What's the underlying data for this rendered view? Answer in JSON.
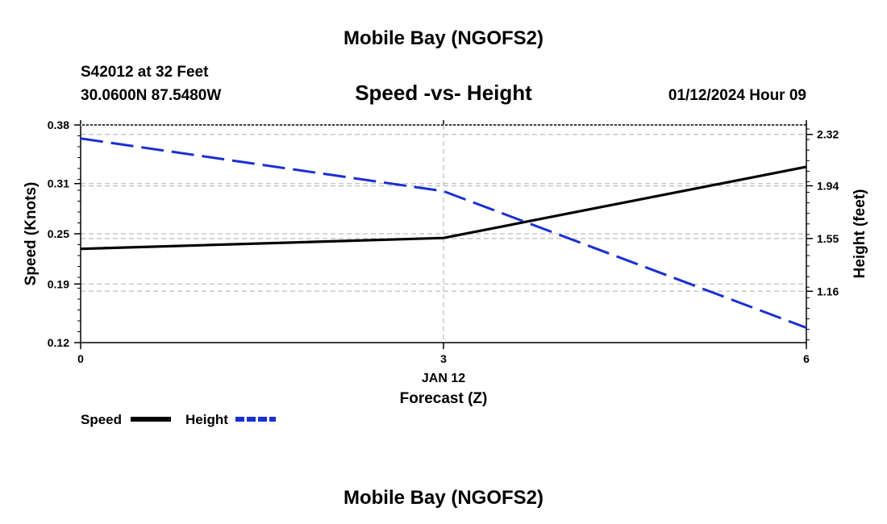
{
  "header": {
    "title": "Mobile Bay (NGOFS2)",
    "station": "S42012 at 32 Feet",
    "location": "30.0600N  87.5480W",
    "datetime": "01/12/2024 Hour 09",
    "footer_title": "Mobile Bay (NGOFS2)"
  },
  "chart_data": {
    "type": "line",
    "title": "Speed -vs- Height",
    "xlabel": "Forecast (Z)",
    "x_date_label": "JAN 12",
    "ylabel_left": "Speed (Knots)",
    "ylabel_right": "Height (feet)",
    "xlim": [
      0,
      6
    ],
    "x_ticks": [
      "0",
      "3",
      "6"
    ],
    "ylim_left": [
      0.12,
      0.38
    ],
    "y_ticks_left": [
      "0.38",
      "0.31",
      "0.25",
      "0.19",
      "0.12"
    ],
    "ylim_right": [
      0.78,
      2.39
    ],
    "y_ticks_right": [
      "2.32",
      "1.94",
      "1.55",
      "1.16"
    ],
    "series": [
      {
        "name": "Speed",
        "axis": "left",
        "color": "#000000",
        "style": "solid",
        "x": [
          0,
          3,
          6
        ],
        "values": [
          0.232,
          0.245,
          0.33
        ]
      },
      {
        "name": "Height",
        "axis": "right",
        "color": "#1a2fd0",
        "style": "dashed",
        "x": [
          0,
          3,
          6
        ],
        "values": [
          2.29,
          1.9,
          0.89
        ]
      }
    ],
    "legend": [
      "Speed",
      "Height"
    ]
  }
}
